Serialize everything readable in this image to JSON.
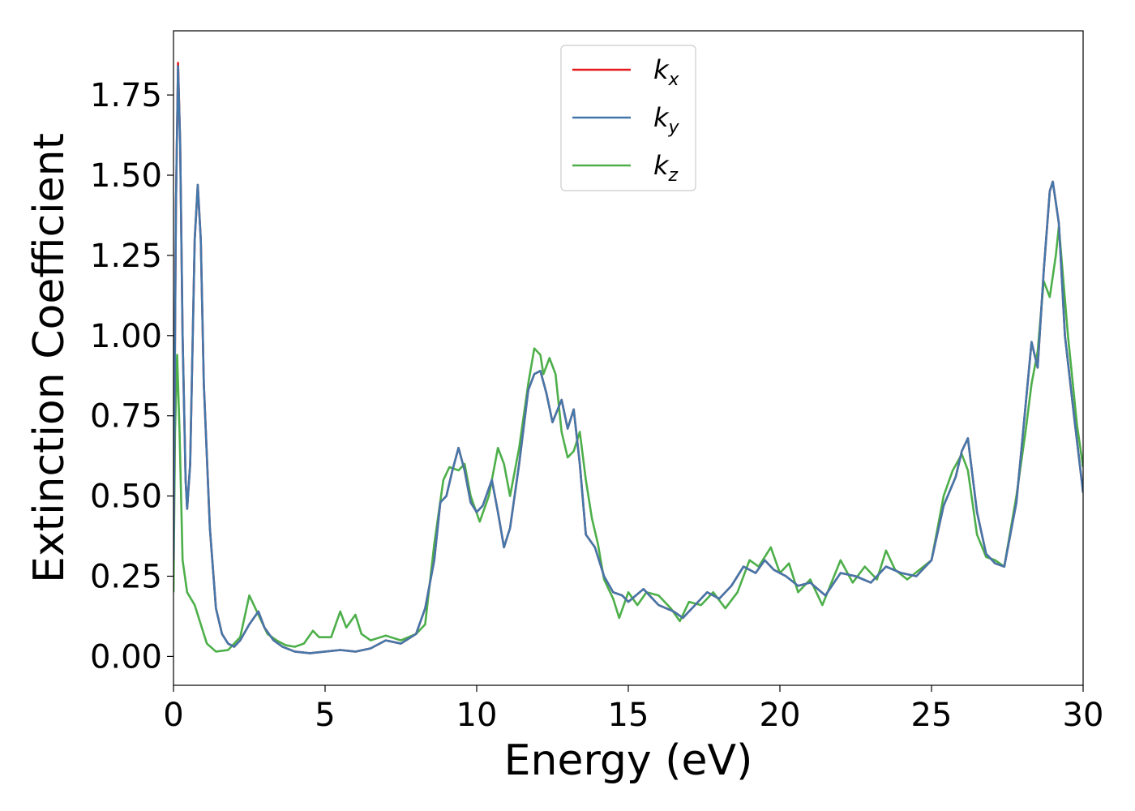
{
  "chart_data": {
    "type": "line",
    "title": "",
    "xlabel": "Energy (eV)",
    "ylabel": "Extinction Coefficient",
    "xlim": [
      0,
      30
    ],
    "ylim": [
      -0.09,
      1.95
    ],
    "xticks": [
      0,
      5,
      10,
      15,
      20,
      25,
      30
    ],
    "xtick_labels": [
      "0",
      "5",
      "10",
      "15",
      "20",
      "25",
      "30"
    ],
    "yticks": [
      0.0,
      0.25,
      0.5,
      0.75,
      1.0,
      1.25,
      1.5,
      1.75
    ],
    "ytick_labels": [
      "0.00",
      "0.25",
      "0.50",
      "0.75",
      "1.00",
      "1.25",
      "1.50",
      "1.75"
    ],
    "grid": false,
    "legend_position": "top-center",
    "series": [
      {
        "name": "k_x",
        "label_base": "k",
        "label_sub": "x",
        "color": "#e41a1c",
        "points": [
          [
            0,
            0.3
          ],
          [
            0.08,
            1.4
          ],
          [
            0.15,
            1.85
          ],
          [
            0.22,
            1.6
          ],
          [
            0.3,
            1.0
          ],
          [
            0.4,
            0.55
          ],
          [
            0.45,
            0.46
          ],
          [
            0.55,
            0.6
          ],
          [
            0.7,
            1.3
          ],
          [
            0.8,
            1.47
          ],
          [
            0.9,
            1.3
          ],
          [
            1.0,
            0.85
          ],
          [
            1.2,
            0.4
          ],
          [
            1.4,
            0.15
          ],
          [
            1.6,
            0.07
          ],
          [
            1.8,
            0.04
          ],
          [
            2.0,
            0.03
          ],
          [
            2.2,
            0.05
          ],
          [
            2.5,
            0.1
          ],
          [
            2.8,
            0.14
          ],
          [
            3.0,
            0.09
          ],
          [
            3.3,
            0.05
          ],
          [
            3.6,
            0.03
          ],
          [
            4.0,
            0.015
          ],
          [
            4.5,
            0.01
          ],
          [
            5.0,
            0.015
          ],
          [
            5.5,
            0.02
          ],
          [
            6.0,
            0.015
          ],
          [
            6.5,
            0.025
          ],
          [
            7.0,
            0.05
          ],
          [
            7.5,
            0.04
          ],
          [
            8.0,
            0.07
          ],
          [
            8.3,
            0.15
          ],
          [
            8.6,
            0.3
          ],
          [
            8.8,
            0.48
          ],
          [
            9.0,
            0.5
          ],
          [
            9.2,
            0.58
          ],
          [
            9.4,
            0.65
          ],
          [
            9.6,
            0.58
          ],
          [
            9.8,
            0.48
          ],
          [
            10.0,
            0.45
          ],
          [
            10.2,
            0.47
          ],
          [
            10.5,
            0.55
          ],
          [
            10.7,
            0.45
          ],
          [
            10.9,
            0.34
          ],
          [
            11.1,
            0.4
          ],
          [
            11.4,
            0.6
          ],
          [
            11.7,
            0.83
          ],
          [
            11.9,
            0.88
          ],
          [
            12.1,
            0.89
          ],
          [
            12.3,
            0.82
          ],
          [
            12.5,
            0.73
          ],
          [
            12.8,
            0.8
          ],
          [
            13.0,
            0.71
          ],
          [
            13.2,
            0.77
          ],
          [
            13.4,
            0.6
          ],
          [
            13.6,
            0.38
          ],
          [
            13.9,
            0.34
          ],
          [
            14.2,
            0.25
          ],
          [
            14.5,
            0.2
          ],
          [
            14.8,
            0.19
          ],
          [
            15.0,
            0.17
          ],
          [
            15.5,
            0.21
          ],
          [
            16.0,
            0.16
          ],
          [
            16.5,
            0.14
          ],
          [
            16.8,
            0.12
          ],
          [
            17.2,
            0.16
          ],
          [
            17.6,
            0.2
          ],
          [
            18.0,
            0.18
          ],
          [
            18.4,
            0.22
          ],
          [
            18.8,
            0.28
          ],
          [
            19.2,
            0.26
          ],
          [
            19.5,
            0.3
          ],
          [
            19.8,
            0.27
          ],
          [
            20.2,
            0.25
          ],
          [
            20.6,
            0.22
          ],
          [
            21.0,
            0.23
          ],
          [
            21.5,
            0.19
          ],
          [
            22.0,
            0.26
          ],
          [
            22.5,
            0.25
          ],
          [
            23.0,
            0.23
          ],
          [
            23.5,
            0.28
          ],
          [
            24.0,
            0.26
          ],
          [
            24.5,
            0.25
          ],
          [
            25.0,
            0.3
          ],
          [
            25.4,
            0.47
          ],
          [
            25.8,
            0.56
          ],
          [
            26.0,
            0.64
          ],
          [
            26.2,
            0.68
          ],
          [
            26.5,
            0.45
          ],
          [
            26.8,
            0.32
          ],
          [
            27.1,
            0.29
          ],
          [
            27.4,
            0.28
          ],
          [
            27.8,
            0.48
          ],
          [
            28.1,
            0.78
          ],
          [
            28.3,
            0.98
          ],
          [
            28.5,
            0.9
          ],
          [
            28.7,
            1.2
          ],
          [
            28.9,
            1.45
          ],
          [
            29.0,
            1.48
          ],
          [
            29.2,
            1.35
          ],
          [
            29.4,
            1.0
          ],
          [
            29.7,
            0.75
          ],
          [
            30.0,
            0.51
          ]
        ]
      },
      {
        "name": "k_y",
        "label_base": "k",
        "label_sub": "y",
        "color": "#4477aa",
        "points": [
          [
            0,
            0.3
          ],
          [
            0.08,
            1.4
          ],
          [
            0.15,
            1.84
          ],
          [
            0.22,
            1.6
          ],
          [
            0.3,
            1.0
          ],
          [
            0.4,
            0.55
          ],
          [
            0.45,
            0.46
          ],
          [
            0.55,
            0.6
          ],
          [
            0.7,
            1.3
          ],
          [
            0.8,
            1.47
          ],
          [
            0.9,
            1.3
          ],
          [
            1.0,
            0.85
          ],
          [
            1.2,
            0.4
          ],
          [
            1.4,
            0.15
          ],
          [
            1.6,
            0.07
          ],
          [
            1.8,
            0.04
          ],
          [
            2.0,
            0.03
          ],
          [
            2.2,
            0.05
          ],
          [
            2.5,
            0.1
          ],
          [
            2.8,
            0.14
          ],
          [
            3.0,
            0.09
          ],
          [
            3.3,
            0.05
          ],
          [
            3.6,
            0.03
          ],
          [
            4.0,
            0.015
          ],
          [
            4.5,
            0.01
          ],
          [
            5.0,
            0.015
          ],
          [
            5.5,
            0.02
          ],
          [
            6.0,
            0.015
          ],
          [
            6.5,
            0.025
          ],
          [
            7.0,
            0.05
          ],
          [
            7.5,
            0.04
          ],
          [
            8.0,
            0.07
          ],
          [
            8.3,
            0.15
          ],
          [
            8.6,
            0.3
          ],
          [
            8.8,
            0.48
          ],
          [
            9.0,
            0.5
          ],
          [
            9.2,
            0.58
          ],
          [
            9.4,
            0.65
          ],
          [
            9.6,
            0.58
          ],
          [
            9.8,
            0.48
          ],
          [
            10.0,
            0.45
          ],
          [
            10.2,
            0.47
          ],
          [
            10.5,
            0.55
          ],
          [
            10.7,
            0.45
          ],
          [
            10.9,
            0.34
          ],
          [
            11.1,
            0.4
          ],
          [
            11.4,
            0.6
          ],
          [
            11.7,
            0.83
          ],
          [
            11.9,
            0.88
          ],
          [
            12.1,
            0.89
          ],
          [
            12.3,
            0.82
          ],
          [
            12.5,
            0.73
          ],
          [
            12.8,
            0.8
          ],
          [
            13.0,
            0.71
          ],
          [
            13.2,
            0.77
          ],
          [
            13.4,
            0.6
          ],
          [
            13.6,
            0.38
          ],
          [
            13.9,
            0.34
          ],
          [
            14.2,
            0.25
          ],
          [
            14.5,
            0.2
          ],
          [
            14.8,
            0.19
          ],
          [
            15.0,
            0.17
          ],
          [
            15.5,
            0.21
          ],
          [
            16.0,
            0.16
          ],
          [
            16.5,
            0.14
          ],
          [
            16.8,
            0.12
          ],
          [
            17.2,
            0.16
          ],
          [
            17.6,
            0.2
          ],
          [
            18.0,
            0.18
          ],
          [
            18.4,
            0.22
          ],
          [
            18.8,
            0.28
          ],
          [
            19.2,
            0.26
          ],
          [
            19.5,
            0.3
          ],
          [
            19.8,
            0.27
          ],
          [
            20.2,
            0.25
          ],
          [
            20.6,
            0.22
          ],
          [
            21.0,
            0.23
          ],
          [
            21.5,
            0.19
          ],
          [
            22.0,
            0.26
          ],
          [
            22.5,
            0.25
          ],
          [
            23.0,
            0.23
          ],
          [
            23.5,
            0.28
          ],
          [
            24.0,
            0.26
          ],
          [
            24.5,
            0.25
          ],
          [
            25.0,
            0.3
          ],
          [
            25.4,
            0.47
          ],
          [
            25.8,
            0.56
          ],
          [
            26.0,
            0.64
          ],
          [
            26.2,
            0.68
          ],
          [
            26.5,
            0.45
          ],
          [
            26.8,
            0.32
          ],
          [
            27.1,
            0.29
          ],
          [
            27.4,
            0.28
          ],
          [
            27.8,
            0.48
          ],
          [
            28.1,
            0.78
          ],
          [
            28.3,
            0.98
          ],
          [
            28.5,
            0.9
          ],
          [
            28.7,
            1.2
          ],
          [
            28.9,
            1.45
          ],
          [
            29.0,
            1.48
          ],
          [
            29.2,
            1.35
          ],
          [
            29.4,
            1.0
          ],
          [
            29.7,
            0.75
          ],
          [
            30.0,
            0.51
          ]
        ]
      },
      {
        "name": "k_z",
        "label_base": "k",
        "label_sub": "z",
        "color": "#4daf4a",
        "points": [
          [
            0,
            0.2
          ],
          [
            0.05,
            0.7
          ],
          [
            0.12,
            0.94
          ],
          [
            0.2,
            0.7
          ],
          [
            0.3,
            0.3
          ],
          [
            0.45,
            0.2
          ],
          [
            0.7,
            0.16
          ],
          [
            0.9,
            0.1
          ],
          [
            1.1,
            0.04
          ],
          [
            1.4,
            0.015
          ],
          [
            1.8,
            0.02
          ],
          [
            2.2,
            0.06
          ],
          [
            2.5,
            0.19
          ],
          [
            2.8,
            0.13
          ],
          [
            3.1,
            0.07
          ],
          [
            3.4,
            0.05
          ],
          [
            3.7,
            0.035
          ],
          [
            4.0,
            0.03
          ],
          [
            4.3,
            0.04
          ],
          [
            4.6,
            0.08
          ],
          [
            4.8,
            0.06
          ],
          [
            5.2,
            0.06
          ],
          [
            5.5,
            0.14
          ],
          [
            5.7,
            0.09
          ],
          [
            6.0,
            0.13
          ],
          [
            6.2,
            0.07
          ],
          [
            6.5,
            0.05
          ],
          [
            7.0,
            0.065
          ],
          [
            7.5,
            0.05
          ],
          [
            8.0,
            0.07
          ],
          [
            8.3,
            0.1
          ],
          [
            8.6,
            0.35
          ],
          [
            8.9,
            0.55
          ],
          [
            9.1,
            0.59
          ],
          [
            9.4,
            0.58
          ],
          [
            9.6,
            0.6
          ],
          [
            9.8,
            0.5
          ],
          [
            10.1,
            0.42
          ],
          [
            10.4,
            0.5
          ],
          [
            10.7,
            0.65
          ],
          [
            10.9,
            0.6
          ],
          [
            11.1,
            0.5
          ],
          [
            11.4,
            0.65
          ],
          [
            11.7,
            0.85
          ],
          [
            11.9,
            0.96
          ],
          [
            12.1,
            0.94
          ],
          [
            12.2,
            0.88
          ],
          [
            12.4,
            0.93
          ],
          [
            12.6,
            0.88
          ],
          [
            12.8,
            0.7
          ],
          [
            13.0,
            0.62
          ],
          [
            13.2,
            0.64
          ],
          [
            13.4,
            0.7
          ],
          [
            13.6,
            0.55
          ],
          [
            13.8,
            0.43
          ],
          [
            14.0,
            0.35
          ],
          [
            14.2,
            0.24
          ],
          [
            14.5,
            0.18
          ],
          [
            14.7,
            0.12
          ],
          [
            15.0,
            0.2
          ],
          [
            15.3,
            0.16
          ],
          [
            15.6,
            0.2
          ],
          [
            16.0,
            0.19
          ],
          [
            16.4,
            0.15
          ],
          [
            16.7,
            0.11
          ],
          [
            17.0,
            0.17
          ],
          [
            17.4,
            0.16
          ],
          [
            17.8,
            0.2
          ],
          [
            18.2,
            0.15
          ],
          [
            18.6,
            0.2
          ],
          [
            19.0,
            0.3
          ],
          [
            19.3,
            0.28
          ],
          [
            19.7,
            0.34
          ],
          [
            20.0,
            0.26
          ],
          [
            20.3,
            0.29
          ],
          [
            20.6,
            0.2
          ],
          [
            21.0,
            0.24
          ],
          [
            21.4,
            0.16
          ],
          [
            22.0,
            0.3
          ],
          [
            22.4,
            0.23
          ],
          [
            22.8,
            0.28
          ],
          [
            23.2,
            0.24
          ],
          [
            23.5,
            0.33
          ],
          [
            23.8,
            0.27
          ],
          [
            24.2,
            0.24
          ],
          [
            24.6,
            0.27
          ],
          [
            25.0,
            0.3
          ],
          [
            25.4,
            0.5
          ],
          [
            25.7,
            0.58
          ],
          [
            26.0,
            0.63
          ],
          [
            26.2,
            0.58
          ],
          [
            26.5,
            0.38
          ],
          [
            26.8,
            0.31
          ],
          [
            27.1,
            0.3
          ],
          [
            27.4,
            0.28
          ],
          [
            27.8,
            0.5
          ],
          [
            28.1,
            0.7
          ],
          [
            28.3,
            0.85
          ],
          [
            28.5,
            0.95
          ],
          [
            28.7,
            1.17
          ],
          [
            28.9,
            1.12
          ],
          [
            29.1,
            1.25
          ],
          [
            29.2,
            1.34
          ],
          [
            29.5,
            1.0
          ],
          [
            29.8,
            0.72
          ],
          [
            30.0,
            0.59
          ]
        ]
      }
    ]
  }
}
